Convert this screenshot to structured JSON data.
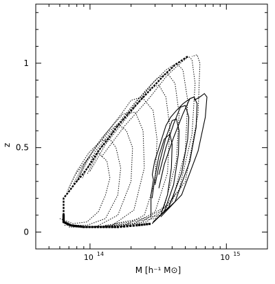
{
  "chart_data": {
    "type": "line",
    "title": "",
    "xlabel": "M [h⁻¹ M⊙]",
    "ylabel": "z",
    "xscale": "log",
    "xlim": [
      40000000000000,
      2000000000000000
    ],
    "ylim": [
      -0.1,
      1.35
    ],
    "xtick_labels": [
      {
        "x": 100000000000000,
        "label": "10",
        "exponent": "14"
      },
      {
        "x": 1000000000000000,
        "label": "10",
        "exponent": "15"
      }
    ],
    "ytick_labels": [
      {
        "y": 0,
        "label": "0"
      },
      {
        "y": 0.5,
        "label": "0.5"
      },
      {
        "y": 1,
        "label": "1"
      }
    ],
    "grid": false,
    "legend": "none",
    "colors": {
      "line": "#000000",
      "background": "#ffffff"
    },
    "series": [
      {
        "style": "dotted",
        "points": [
          [
            60000000000000,
            0.08
          ],
          [
            75000000000000,
            0.05
          ],
          [
            95000000000000,
            0.06
          ],
          [
            115000000000000,
            0.12
          ],
          [
            130000000000000,
            0.22
          ],
          [
            140000000000000,
            0.32
          ],
          [
            133000000000000,
            0.42
          ],
          [
            115000000000000,
            0.47
          ],
          [
            95000000000000,
            0.43
          ],
          [
            78000000000000,
            0.34
          ],
          [
            68000000000000,
            0.24
          ]
        ]
      },
      {
        "style": "dotted",
        "points": [
          [
            65000000000000,
            0.04
          ],
          [
            95000000000000,
            0.04
          ],
          [
            130000000000000,
            0.08
          ],
          [
            160000000000000,
            0.22
          ],
          [
            168000000000000,
            0.38
          ],
          [
            155000000000000,
            0.5
          ],
          [
            140000000000000,
            0.55
          ],
          [
            120000000000000,
            0.54
          ],
          [
            98000000000000,
            0.47
          ],
          [
            80000000000000,
            0.36
          ],
          [
            70000000000000,
            0.26
          ]
        ]
      },
      {
        "style": "dotted",
        "points": [
          [
            70000000000000,
            0.03
          ],
          [
            110000000000000,
            0.03
          ],
          [
            160000000000000,
            0.1
          ],
          [
            200000000000000,
            0.3
          ],
          [
            205000000000000,
            0.5
          ],
          [
            185000000000000,
            0.6
          ],
          [
            160000000000000,
            0.64
          ],
          [
            140000000000000,
            0.6
          ],
          [
            115000000000000,
            0.52
          ],
          [
            90000000000000,
            0.4
          ],
          [
            75000000000000,
            0.28
          ]
        ]
      },
      {
        "style": "dotted",
        "points": [
          [
            75000000000000,
            0.03
          ],
          [
            140000000000000,
            0.03
          ],
          [
            210000000000000,
            0.13
          ],
          [
            250000000000000,
            0.38
          ],
          [
            245000000000000,
            0.6
          ],
          [
            215000000000000,
            0.71
          ],
          [
            175000000000000,
            0.7
          ],
          [
            150000000000000,
            0.64
          ],
          [
            120000000000000,
            0.55
          ],
          [
            95000000000000,
            0.43
          ],
          [
            80000000000000,
            0.3
          ]
        ]
      },
      {
        "style": "dotted",
        "points": [
          [
            80000000000000,
            0.03
          ],
          [
            170000000000000,
            0.03
          ],
          [
            250000000000000,
            0.1
          ],
          [
            300000000000000,
            0.3
          ],
          [
            310000000000000,
            0.55
          ],
          [
            290000000000000,
            0.72
          ],
          [
            240000000000000,
            0.8
          ],
          [
            200000000000000,
            0.78
          ],
          [
            170000000000000,
            0.7
          ],
          [
            130000000000000,
            0.58
          ],
          [
            100000000000000,
            0.45
          ],
          [
            80000000000000,
            0.3
          ]
        ]
      },
      {
        "style": "dotted",
        "points": [
          [
            85000000000000,
            0.03
          ],
          [
            200000000000000,
            0.04
          ],
          [
            300000000000000,
            0.12
          ],
          [
            370000000000000,
            0.35
          ],
          [
            385000000000000,
            0.62
          ],
          [
            360000000000000,
            0.8
          ],
          [
            320000000000000,
            0.87
          ],
          [
            270000000000000,
            0.85
          ],
          [
            220000000000000,
            0.78
          ],
          [
            160000000000000,
            0.64
          ],
          [
            110000000000000,
            0.48
          ],
          [
            88000000000000,
            0.32
          ]
        ]
      },
      {
        "style": "dotted",
        "points": [
          [
            95000000000000,
            0.03
          ],
          [
            230000000000000,
            0.05
          ],
          [
            350000000000000,
            0.15
          ],
          [
            430000000000000,
            0.42
          ],
          [
            450000000000000,
            0.7
          ],
          [
            420000000000000,
            0.88
          ],
          [
            370000000000000,
            0.94
          ],
          [
            310000000000000,
            0.91
          ],
          [
            250000000000000,
            0.83
          ],
          [
            180000000000000,
            0.68
          ],
          [
            120000000000000,
            0.5
          ],
          [
            95000000000000,
            0.34
          ]
        ]
      },
      {
        "style": "dotted",
        "points": [
          [
            110000000000000,
            0.03
          ],
          [
            260000000000000,
            0.06
          ],
          [
            400000000000000,
            0.18
          ],
          [
            500000000000000,
            0.48
          ],
          [
            520000000000000,
            0.78
          ],
          [
            480000000000000,
            0.96
          ],
          [
            430000000000000,
            1.0
          ],
          [
            360000000000000,
            0.96
          ],
          [
            280000000000000,
            0.87
          ],
          [
            200000000000000,
            0.71
          ],
          [
            130000000000000,
            0.52
          ],
          [
            100000000000000,
            0.36
          ]
        ]
      },
      {
        "style": "dotted",
        "points": [
          [
            130000000000000,
            0.04
          ],
          [
            300000000000000,
            0.08
          ],
          [
            450000000000000,
            0.25
          ],
          [
            560000000000000,
            0.58
          ],
          [
            590000000000000,
            0.88
          ],
          [
            560000000000000,
            1.02
          ],
          [
            530000000000000,
            1.04
          ],
          [
            460000000000000,
            1.0
          ],
          [
            370000000000000,
            0.93
          ],
          [
            270000000000000,
            0.79
          ],
          [
            180000000000000,
            0.63
          ],
          [
            120000000000000,
            0.44
          ]
        ]
      },
      {
        "style": "dotted",
        "points": [
          [
            150000000000000,
            0.05
          ],
          [
            330000000000000,
            0.1
          ],
          [
            500000000000000,
            0.3
          ],
          [
            620000000000000,
            0.7
          ],
          [
            640000000000000,
            1.0
          ],
          [
            610000000000000,
            1.05
          ],
          [
            560000000000000,
            1.04
          ]
        ]
      },
      {
        "style": "solid",
        "points": [
          [
            285000000000000,
            0.05
          ],
          [
            330000000000000,
            0.1
          ],
          [
            370000000000000,
            0.22
          ],
          [
            395000000000000,
            0.38
          ],
          [
            400000000000000,
            0.52
          ],
          [
            385000000000000,
            0.58
          ],
          [
            350000000000000,
            0.55
          ],
          [
            320000000000000,
            0.45
          ],
          [
            300000000000000,
            0.33
          ],
          [
            285000000000000,
            0.2
          ]
        ]
      },
      {
        "style": "solid",
        "points": [
          [
            290000000000000,
            0.06
          ],
          [
            350000000000000,
            0.12
          ],
          [
            410000000000000,
            0.28
          ],
          [
            445000000000000,
            0.46
          ],
          [
            450000000000000,
            0.6
          ],
          [
            430000000000000,
            0.67
          ],
          [
            400000000000000,
            0.66
          ],
          [
            360000000000000,
            0.56
          ],
          [
            325000000000000,
            0.42
          ],
          [
            300000000000000,
            0.28
          ]
        ]
      },
      {
        "style": "solid",
        "points": [
          [
            300000000000000,
            0.07
          ],
          [
            380000000000000,
            0.15
          ],
          [
            470000000000000,
            0.35
          ],
          [
            520000000000000,
            0.55
          ],
          [
            530000000000000,
            0.68
          ],
          [
            500000000000000,
            0.75
          ],
          [
            460000000000000,
            0.74
          ],
          [
            410000000000000,
            0.64
          ],
          [
            360000000000000,
            0.5
          ],
          [
            320000000000000,
            0.34
          ]
        ]
      },
      {
        "style": "solid",
        "points": [
          [
            310000000000000,
            0.08
          ],
          [
            420000000000000,
            0.18
          ],
          [
            540000000000000,
            0.42
          ],
          [
            600000000000000,
            0.62
          ],
          [
            610000000000000,
            0.76
          ],
          [
            580000000000000,
            0.8
          ],
          [
            540000000000000,
            0.79
          ],
          [
            480000000000000,
            0.7
          ],
          [
            410000000000000,
            0.56
          ],
          [
            350000000000000,
            0.4
          ],
          [
            320000000000000,
            0.26
          ]
        ]
      },
      {
        "style": "solid",
        "points": [
          [
            330000000000000,
            0.09
          ],
          [
            470000000000000,
            0.22
          ],
          [
            620000000000000,
            0.48
          ],
          [
            700000000000000,
            0.68
          ],
          [
            720000000000000,
            0.8
          ],
          [
            690000000000000,
            0.82
          ],
          [
            640000000000000,
            0.8
          ],
          [
            580000000000000,
            0.78
          ]
        ]
      },
      {
        "style": "solid",
        "points": [
          [
            280000000000000,
            0.09
          ],
          [
            280000000000000,
            0.22
          ],
          [
            292000000000000,
            0.31
          ],
          [
            286000000000000,
            0.34
          ],
          [
            298000000000000,
            0.42
          ],
          [
            315000000000000,
            0.48
          ],
          [
            335000000000000,
            0.55
          ],
          [
            360000000000000,
            0.63
          ],
          [
            390000000000000,
            0.68
          ],
          [
            430000000000000,
            0.72
          ],
          [
            480000000000000,
            0.76
          ],
          [
            540000000000000,
            0.79
          ],
          [
            580000000000000,
            0.8
          ]
        ]
      }
    ],
    "boundary": [
      [
        64000000000000,
        0.1
      ],
      [
        64000000000000,
        0.2
      ],
      [
        70000000000000,
        0.24
      ],
      [
        78000000000000,
        0.29
      ],
      [
        88000000000000,
        0.34
      ],
      [
        100000000000000,
        0.4
      ],
      [
        115000000000000,
        0.48
      ],
      [
        135000000000000,
        0.55
      ],
      [
        160000000000000,
        0.63
      ],
      [
        195000000000000,
        0.71
      ],
      [
        240000000000000,
        0.79
      ],
      [
        290000000000000,
        0.86
      ],
      [
        350000000000000,
        0.93
      ],
      [
        420000000000000,
        0.99
      ],
      [
        520000000000000,
        1.04
      ]
    ],
    "floor": [
      [
        64000000000000,
        0.1
      ],
      [
        64000000000000,
        0.06
      ],
      [
        72000000000000,
        0.04
      ],
      [
        90000000000000,
        0.03
      ],
      [
        120000000000000,
        0.03
      ],
      [
        160000000000000,
        0.03
      ],
      [
        220000000000000,
        0.04
      ],
      [
        285000000000000,
        0.05
      ]
    ],
    "floor_marker": "square"
  }
}
